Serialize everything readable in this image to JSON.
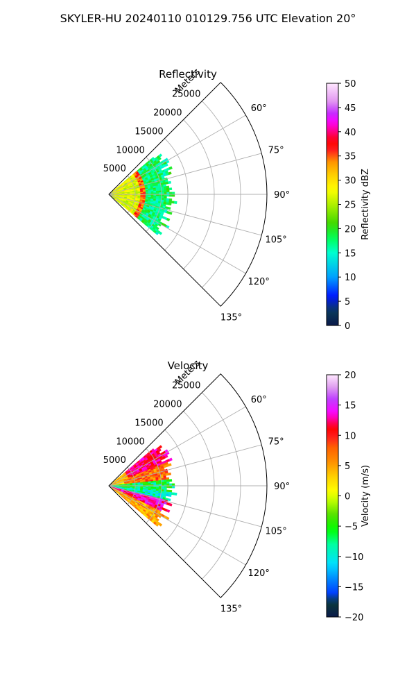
{
  "suptitle": "SKYLER-HU  20240110  010129.756 UTC Elevation 20°",
  "colors": {
    "axis": "#000000",
    "grid": "#b0b0b0"
  },
  "chart_data": [
    {
      "type": "heatmap",
      "projection": "polar-sector",
      "title": "Reflectivity",
      "radial_label": "Meters",
      "r_ticks": [
        "5000",
        "10000",
        "15000",
        "20000",
        "25000"
      ],
      "r_tick_values": [
        5000,
        10000,
        15000,
        20000,
        25000
      ],
      "rlim": [
        0,
        30000
      ],
      "theta_range_deg": [
        45,
        135
      ],
      "theta_ticks": [
        "60°",
        "75°",
        "90°",
        "105°",
        "120°",
        "135°"
      ],
      "theta_tick_values": [
        60,
        75,
        90,
        105,
        120,
        135
      ],
      "data_extent": {
        "theta_deg": [
          50,
          130
        ],
        "max_range_m": 13000
      },
      "pattern": {
        "band_range_m": 6500,
        "band_value": 35,
        "near_value": 27,
        "outer_value": 17
      },
      "colorbar": {
        "label": "Reflectivity dBZ",
        "range": [
          0,
          50
        ],
        "ticks": [
          "0",
          "5",
          "10",
          "15",
          "20",
          "25",
          "30",
          "35",
          "40",
          "45",
          "50"
        ],
        "colormap": "NWS reflectivity"
      }
    },
    {
      "type": "heatmap",
      "projection": "polar-sector",
      "title": "Velocity",
      "radial_label": "Meters",
      "r_ticks": [
        "5000",
        "10000",
        "15000",
        "20000",
        "25000"
      ],
      "r_tick_values": [
        5000,
        10000,
        15000,
        20000,
        25000
      ],
      "rlim": [
        0,
        30000
      ],
      "theta_range_deg": [
        45,
        135
      ],
      "theta_ticks": [
        "60°",
        "75°",
        "90°",
        "105°",
        "120°",
        "135°"
      ],
      "theta_tick_values": [
        60,
        75,
        90,
        105,
        120,
        135
      ],
      "data_extent": {
        "theta_deg": [
          50,
          130
        ],
        "max_range_m": 13000
      },
      "pattern": {
        "north_edge_value": 10,
        "center_value": -6,
        "south_inner_value": 14,
        "south_outer_value": 2
      },
      "colorbar": {
        "label": "Velocity (m/s)",
        "range": [
          -20,
          20
        ],
        "ticks": [
          "-20",
          "-15",
          "-10",
          "-5",
          "0",
          "5",
          "10",
          "15",
          "20"
        ],
        "colormap": "radial velocity"
      }
    }
  ]
}
